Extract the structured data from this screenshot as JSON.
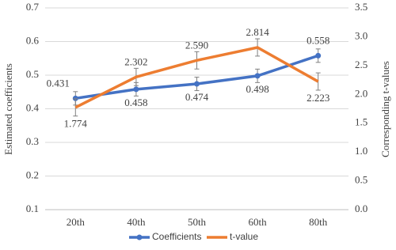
{
  "chart_data": {
    "type": "line",
    "categories": [
      "20th",
      "40th",
      "50th",
      "60th",
      "80th"
    ],
    "ylabel": "Estimated coefficients",
    "y2label": "Corresponding t-values",
    "ylim": [
      0.1,
      0.7
    ],
    "yticks": [
      0.1,
      0.2,
      0.3,
      0.4,
      0.5,
      0.6,
      0.7
    ],
    "y2lim": [
      0,
      3.5
    ],
    "y2ticks": [
      {
        "value": 0,
        "label": "0.0"
      },
      0.5,
      {
        "value": 1,
        "label": "1.0"
      },
      1.5,
      {
        "value": 2,
        "label": "2.0"
      },
      2.5,
      {
        "value": 3,
        "label": "3.0"
      },
      3.5
    ],
    "grid": true,
    "legend": "bottom",
    "series": [
      {
        "name": "Coefficients",
        "color": "#4472c4",
        "values": [
          0.431,
          0.458,
          0.474,
          0.498,
          0.558
        ],
        "value_labels": [
          "0.431",
          "0.458",
          "0.474",
          "0.498",
          "0.558"
        ],
        "errors": [
          0.02,
          0.02,
          0.02,
          0.02,
          0.02
        ]
      },
      {
        "name": "t-value",
        "color": "#ed7d31",
        "axis": "y2",
        "values": [
          1.774,
          2.302,
          2.59,
          2.814,
          2.223
        ],
        "value_labels": [
          "1.774",
          "2.302",
          "2.590",
          "2.814",
          "2.223"
        ],
        "errors": [
          0.15,
          0.15,
          0.15,
          0.15,
          0.15
        ]
      }
    ]
  }
}
